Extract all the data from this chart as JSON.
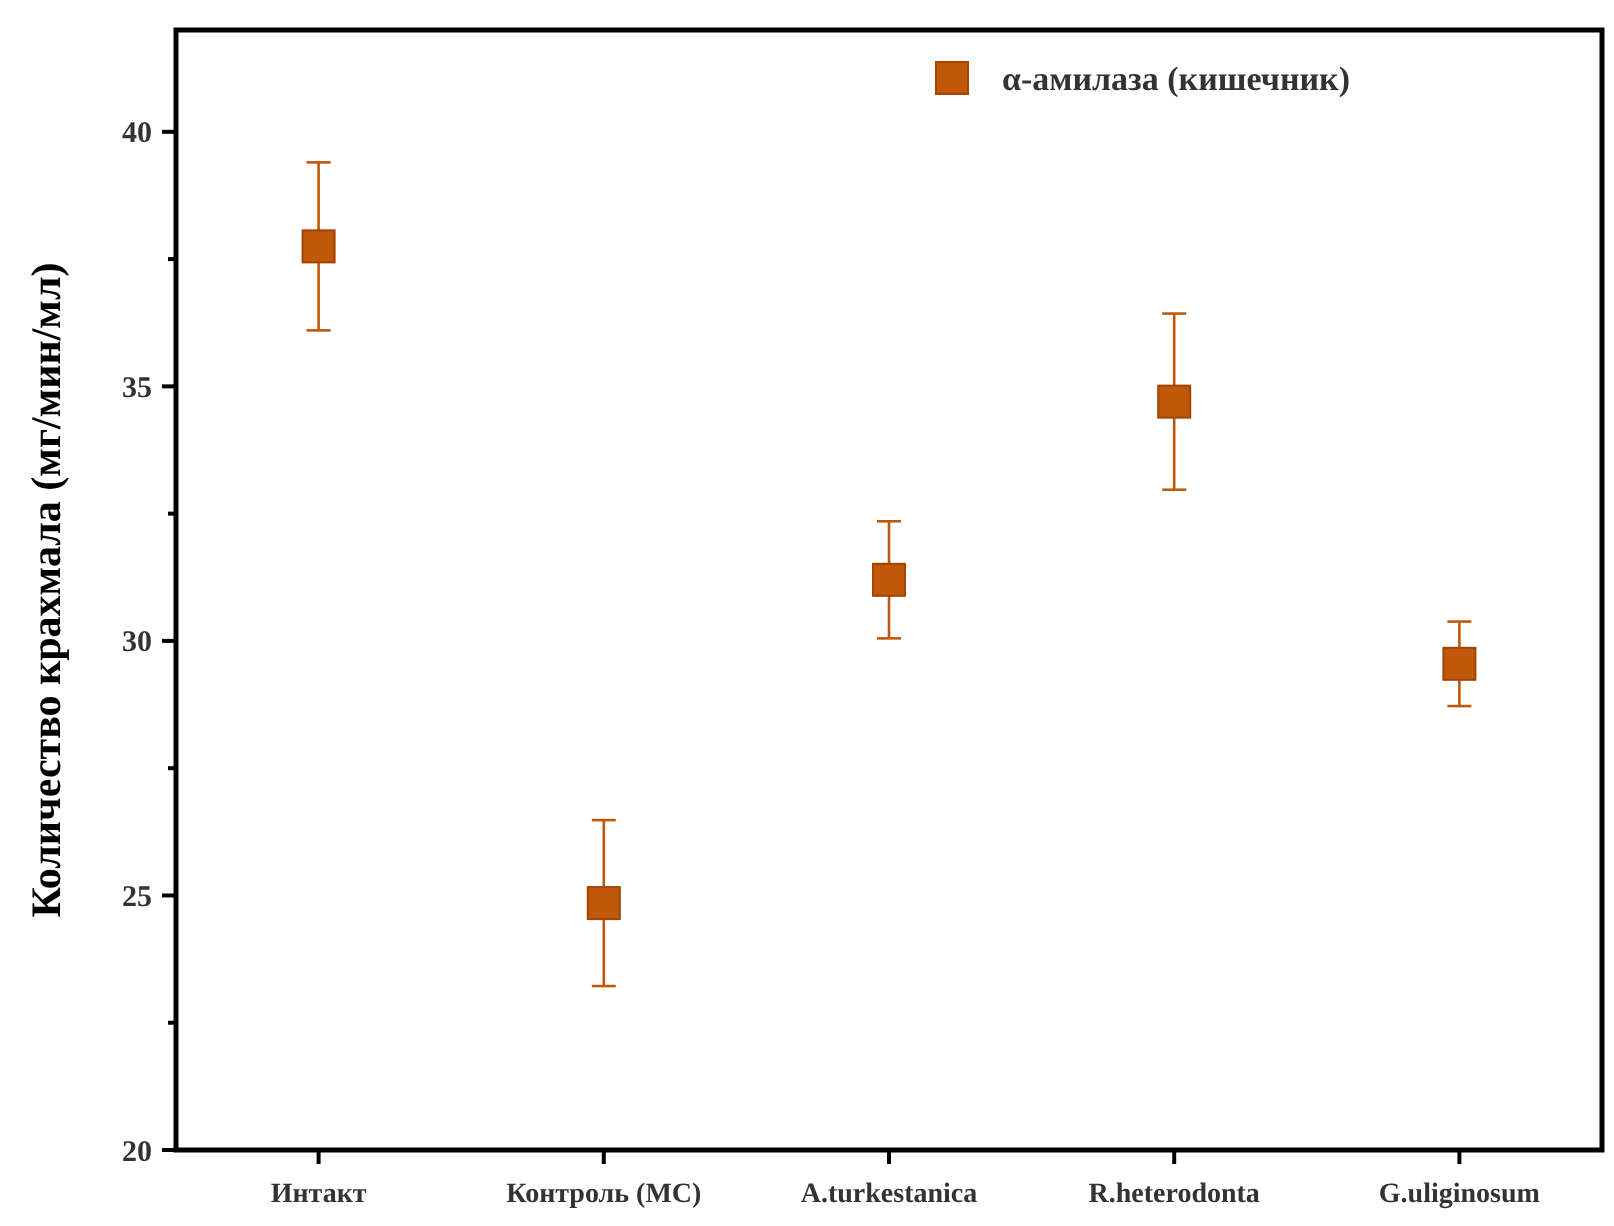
{
  "chart_data": {
    "type": "scatter",
    "ylabel": "Количество крахмала (мг/мин/мл)",
    "categories": [
      "Интакт",
      "Контроль (МС)",
      "A.turkestanica",
      "R.heterodonta",
      "G.uliginosum"
    ],
    "series": [
      {
        "name": "α-амилаза (кишечник)",
        "color": "#c0580a",
        "values": [
          37.75,
          24.85,
          31.2,
          34.7,
          29.55
        ],
        "errors": [
          1.65,
          1.63,
          1.15,
          1.73,
          0.83
        ]
      }
    ],
    "ylim": [
      20,
      42
    ],
    "yticks": [
      20,
      {
        "value": 22.5,
        "label": null
      },
      25,
      {
        "value": 27.5,
        "label": null
      },
      30,
      {
        "value": 32.5,
        "label": null
      },
      35,
      {
        "value": 37.5,
        "label": null
      },
      40
    ],
    "marker": "square",
    "legend": "top right",
    "grid": false
  }
}
